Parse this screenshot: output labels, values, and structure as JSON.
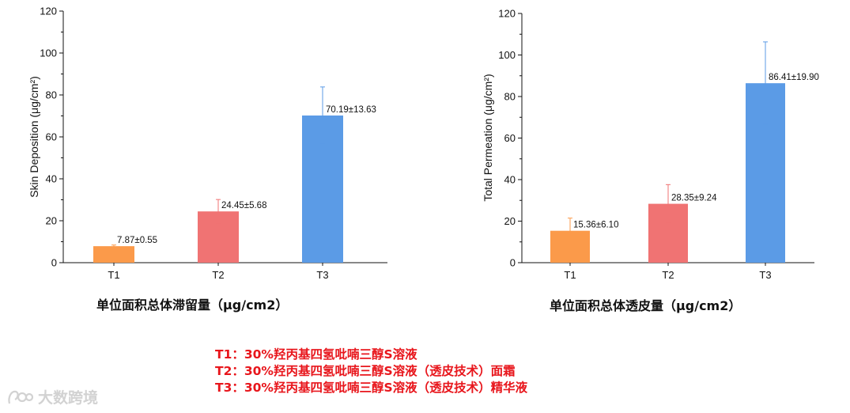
{
  "chart_data": [
    {
      "type": "bar",
      "categories": [
        "T1",
        "T2",
        "T3"
      ],
      "values": [
        7.87,
        24.45,
        70.19
      ],
      "errors": [
        0.55,
        5.68,
        13.63
      ],
      "data_labels": [
        "7.87±0.55",
        "24.45±5.68",
        "70.19±13.63"
      ],
      "colors": [
        "#fb9a4a",
        "#f07373",
        "#5b9be6"
      ],
      "ylabel": "Skin Deposition (μg/cm²)",
      "ylim": [
        0,
        120
      ],
      "yticks": [
        "0",
        "20",
        "40",
        "60",
        "80",
        "100",
        "120"
      ],
      "caption": "单位面积总体滞留量（μg/cm2）"
    },
    {
      "type": "bar",
      "categories": [
        "T1",
        "T2",
        "T3"
      ],
      "values": [
        15.36,
        28.35,
        86.41
      ],
      "errors": [
        6.1,
        9.24,
        19.9
      ],
      "data_labels": [
        "15.36±6.10",
        "28.35±9.24",
        "86.41±19.90"
      ],
      "colors": [
        "#fb9a4a",
        "#f07373",
        "#5b9be6"
      ],
      "ylabel": "Total Permeation (μg/cm²)",
      "ylim": [
        0,
        120
      ],
      "yticks": [
        "0",
        "20",
        "40",
        "60",
        "80",
        "100",
        "120"
      ],
      "caption": "单位面积总体透皮量（μg/cm2）"
    }
  ],
  "legend": {
    "color": "#e8161c",
    "lines": [
      "T1：30%羟丙基四氢吡喃三醇S溶液",
      "T2：30%羟丙基四氢吡喃三醇S溶液（透皮技术）面霜",
      "T3：30%羟丙基四氢吡喃三醇S溶液（透皮技术）精华液"
    ]
  },
  "watermark": {
    "text": "大数跨境",
    "icon": "watermark-logo-icon"
  }
}
